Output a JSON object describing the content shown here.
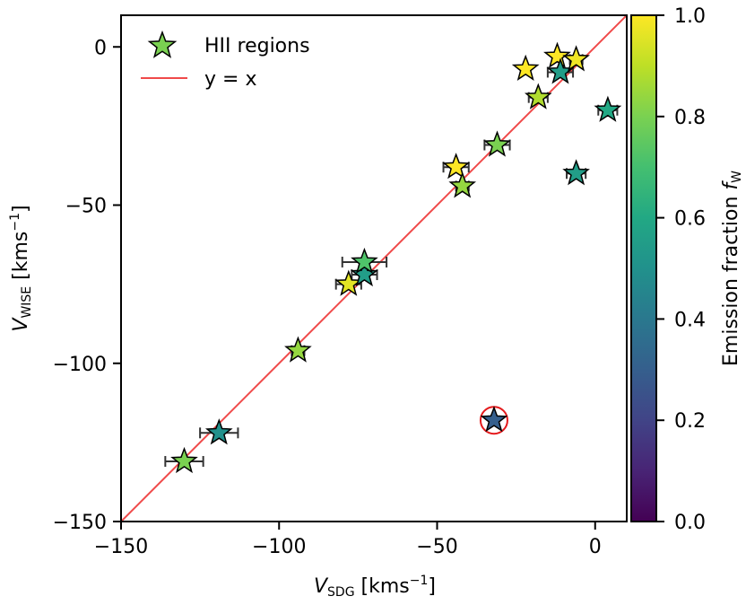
{
  "chart_data": {
    "type": "scatter",
    "title": "",
    "xlabel": {
      "main": "V",
      "sub": "SDG",
      "unit": " [kms",
      "sup": "−1",
      "close": "]"
    },
    "ylabel": {
      "main": "V",
      "sub": "WISE",
      "unit": " [kms",
      "sup": "−1",
      "close": "]"
    },
    "xlim": [
      -150,
      10
    ],
    "ylim": [
      -150,
      10
    ],
    "xticks": [
      -150,
      -100,
      -50,
      0
    ],
    "yticks": [
      -150,
      -100,
      -50,
      0
    ],
    "xtick_labels": [
      "−150",
      "−100",
      "−50",
      "0"
    ],
    "ytick_labels": [
      "−150",
      "−100",
      "−50",
      "0"
    ],
    "colorbar": {
      "label": "Emission fraction ",
      "label_var": "f",
      "label_sub": "W",
      "range": [
        0,
        1
      ],
      "ticks": [
        0,
        0.2,
        0.4,
        0.6,
        0.8,
        1.0
      ],
      "tick_labels": [
        "0.0",
        "0.2",
        "0.4",
        "0.6",
        "0.8",
        "1.0"
      ],
      "colormap": "viridis"
    },
    "legend": {
      "position": "top-left",
      "entries": [
        {
          "label": "HII regions",
          "kind": "star-marker"
        },
        {
          "label": "y = x",
          "kind": "line"
        }
      ]
    },
    "reference_line": {
      "label": "y = x",
      "color": "#f04a4a"
    },
    "highlight": {
      "x": -32,
      "y": -118,
      "color": "#e41a1c"
    },
    "series": [
      {
        "name": "HII regions",
        "points": [
          {
            "x": -130,
            "y": -131,
            "xerr": 6,
            "f": 0.8
          },
          {
            "x": -119,
            "y": -122,
            "xerr": 6,
            "f": 0.5
          },
          {
            "x": -94,
            "y": -96,
            "xerr": 2,
            "f": 0.84
          },
          {
            "x": -78,
            "y": -75,
            "xerr": 4,
            "f": 0.96
          },
          {
            "x": -73,
            "y": -72,
            "xerr": 4,
            "f": 0.55
          },
          {
            "x": -73,
            "y": -68,
            "xerr": 7,
            "f": 0.72
          },
          {
            "x": -44,
            "y": -38,
            "xerr": 4,
            "f": 1.0
          },
          {
            "x": -42,
            "y": -44,
            "xerr": 2,
            "f": 0.84
          },
          {
            "x": -31,
            "y": -31,
            "xerr": 4,
            "f": 0.8
          },
          {
            "x": -32,
            "y": -118,
            "xerr": 0,
            "f": 0.3
          },
          {
            "x": -22,
            "y": -7,
            "xerr": 0,
            "f": 1.0
          },
          {
            "x": -18,
            "y": -16,
            "xerr": 3,
            "f": 0.88
          },
          {
            "x": -12,
            "y": -3,
            "xerr": 0,
            "f": 1.0
          },
          {
            "x": -11,
            "y": -8,
            "xerr": 4,
            "f": 0.55
          },
          {
            "x": -6,
            "y": -4,
            "xerr": 2,
            "f": 0.98
          },
          {
            "x": -6,
            "y": -40,
            "xerr": 3,
            "f": 0.55
          },
          {
            "x": 4,
            "y": -20,
            "xerr": 3,
            "f": 0.6
          }
        ]
      }
    ]
  }
}
